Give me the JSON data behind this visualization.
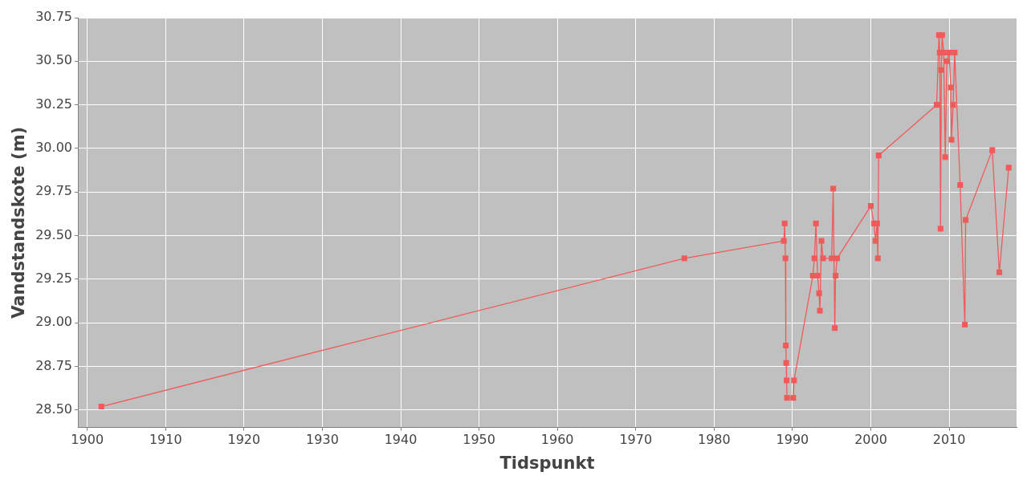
{
  "chart_data": {
    "type": "line",
    "xlabel": "Tidspunkt",
    "ylabel": "Vandstandskote (m)",
    "x": [
      1901.8,
      1976.2,
      1988.9,
      1989.0,
      1989.1,
      1989.15,
      1989.2,
      1989.25,
      1989.3,
      1990.1,
      1990.2,
      1992.6,
      1992.8,
      1993.0,
      1993.2,
      1993.4,
      1993.5,
      1993.7,
      1993.9,
      1995.0,
      1995.2,
      1995.4,
      1995.5,
      1995.7,
      2000.0,
      2000.4,
      2000.6,
      2000.8,
      2000.9,
      2001.0,
      2008.4,
      2008.7,
      2008.8,
      2008.9,
      2009.0,
      2009.1,
      2009.3,
      2009.5,
      2009.7,
      2010.0,
      2010.2,
      2010.3,
      2010.5,
      2010.7,
      2011.4,
      2012.0,
      2012.1,
      2015.5,
      2016.4,
      2017.6
    ],
    "series": [
      {
        "color": "#f05a5a",
        "values": [
          28.52,
          29.37,
          29.47,
          29.57,
          29.37,
          28.87,
          28.77,
          28.67,
          28.57,
          28.57,
          28.67,
          29.27,
          29.37,
          29.57,
          29.27,
          29.17,
          29.07,
          29.47,
          29.37,
          29.37,
          29.77,
          28.97,
          29.27,
          29.37,
          29.67,
          29.57,
          29.47,
          29.57,
          29.37,
          29.96,
          30.25,
          30.65,
          30.55,
          29.54,
          30.45,
          30.65,
          30.55,
          29.95,
          30.5,
          30.55,
          30.35,
          30.05,
          30.25,
          30.55,
          29.79,
          28.99,
          29.59,
          29.99,
          29.29,
          29.89
        ]
      }
    ],
    "xlim": [
      1898.8,
      2018.6
    ],
    "xticks": [
      1900,
      1910,
      1920,
      1930,
      1940,
      1950,
      1960,
      1970,
      1980,
      1990,
      2000,
      2010
    ],
    "ylim": [
      28.4,
      30.75
    ],
    "yticks": [
      {
        "value": 28.5,
        "label": "28.50"
      },
      {
        "value": 28.75,
        "label": "28.75"
      },
      {
        "value": 29,
        "label": "29.00"
      },
      {
        "value": 29.25,
        "label": "29.25"
      },
      {
        "value": 29.5,
        "label": "29.50"
      },
      {
        "value": 29.75,
        "label": "29.75"
      },
      {
        "value": 30,
        "label": "30.00"
      },
      {
        "value": 30.25,
        "label": "30.25"
      },
      {
        "value": 30.5,
        "label": "30.50"
      },
      {
        "value": 30.75,
        "label": "30.75"
      }
    ],
    "grid": true,
    "marker": "square",
    "line_style": "solid",
    "legend": false
  }
}
